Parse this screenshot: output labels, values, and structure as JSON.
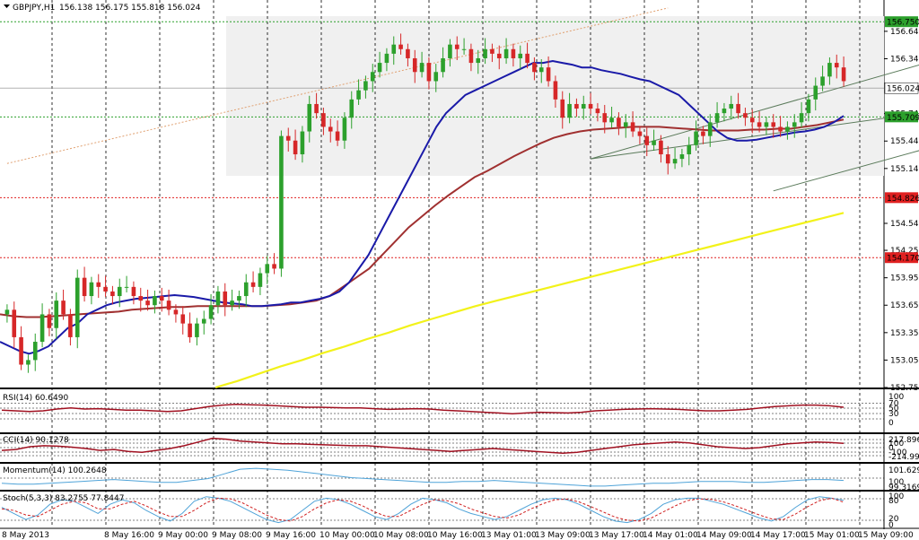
{
  "header": {
    "symbol": "GBPJPY,H1",
    "ohlc": "156.138 156.175 155.818 156.024"
  },
  "colors": {
    "bull": "#2ca02c",
    "bear": "#d62728",
    "ma_fast": "#1a1aa8",
    "ma_slow": "#a03030",
    "ma_200": "#f2f21a",
    "zone": "#f0f0f0",
    "marker_green": "#2ca02c",
    "marker_red": "#e02020",
    "marker_gray": "#808080",
    "osc": "#a01020",
    "mom": "#4fa3d8",
    "stoch_main": "#4fa3d8",
    "stoch_signal": "#d02020"
  },
  "chart_data": [
    {
      "type": "candlestick",
      "title": "GBPJPY,H1 156.138 156.175 155.818 156.024",
      "ylim": [
        152.75,
        156.85
      ],
      "y_ticks": [
        156.645,
        156.345,
        155.745,
        155.445,
        155.145,
        154.545,
        154.25,
        153.95,
        153.65,
        153.35,
        153.05,
        152.75
      ],
      "x_ticks": [
        "8 May 2013",
        "8 May 16:00",
        "9 May 00:00",
        "9 May 08:00",
        "9 May 16:00",
        "10 May 00:00",
        "10 May 08:00",
        "10 May 16:00",
        "13 May 01:00",
        "13 May 09:00",
        "13 May 17:00",
        "14 May 01:00",
        "14 May 09:00",
        "14 May 17:00",
        "15 May 01:00",
        "15 May 09:00"
      ],
      "price_markers": [
        {
          "label": "156.750",
          "value": 156.75,
          "style": "green"
        },
        {
          "label": "156.024",
          "value": 156.024,
          "style": "gray"
        },
        {
          "label": "155.709",
          "value": 155.709,
          "style": "green"
        },
        {
          "label": "154.826",
          "value": 154.826,
          "style": "red"
        },
        {
          "label": "154.170",
          "value": 154.17,
          "style": "red"
        }
      ],
      "resistance_zone": [
        155.1,
        156.75
      ],
      "channel": {
        "upper": [
          [
            83,
            155.25
          ],
          [
            149,
            156.7
          ]
        ],
        "lower": [
          [
            109,
            154.9
          ],
          [
            149,
            155.75
          ]
        ],
        "mid": [
          [
            83,
            155.25
          ],
          [
            130,
            155.75
          ]
        ]
      },
      "trendline": [
        [
          0,
          155.2
        ],
        [
          94,
          156.9
        ]
      ],
      "closes": [
        153.6,
        153.3,
        153.0,
        153.05,
        153.25,
        153.55,
        153.4,
        153.7,
        153.55,
        153.3,
        153.95,
        153.75,
        153.9,
        153.85,
        153.8,
        153.75,
        153.85,
        153.85,
        153.75,
        153.7,
        153.65,
        153.75,
        153.7,
        153.6,
        153.55,
        153.45,
        153.3,
        153.45,
        153.5,
        153.65,
        153.8,
        153.65,
        153.7,
        153.75,
        153.9,
        153.85,
        154.0,
        154.1,
        154.05,
        155.5,
        155.45,
        155.3,
        155.55,
        155.85,
        155.75,
        155.6,
        155.55,
        155.45,
        155.7,
        155.9,
        156.0,
        156.1,
        156.2,
        156.3,
        156.4,
        156.5,
        156.45,
        156.35,
        156.2,
        156.3,
        156.1,
        156.2,
        156.35,
        156.5,
        156.45,
        156.45,
        156.3,
        156.35,
        156.45,
        156.4,
        156.35,
        156.45,
        156.35,
        156.4,
        156.3,
        156.2,
        156.25,
        156.1,
        155.9,
        155.7,
        155.85,
        155.8,
        155.85,
        155.8,
        155.75,
        155.65,
        155.7,
        155.6,
        155.65,
        155.55,
        155.5,
        155.4,
        155.45,
        155.3,
        155.2,
        155.25,
        155.3,
        155.4,
        155.55,
        155.5,
        155.65,
        155.75,
        155.8,
        155.85,
        155.75,
        155.7,
        155.65,
        155.6,
        155.65,
        155.6,
        155.55,
        155.6,
        155.65,
        155.75,
        155.9,
        156.05,
        156.15,
        156.3,
        156.25,
        156.1
      ],
      "ma_fast_values": [
        153.25,
        153.2,
        153.15,
        153.12,
        153.15,
        153.2,
        153.3,
        153.4,
        153.45,
        153.55,
        153.6,
        153.65,
        153.68,
        153.7,
        153.72,
        153.73,
        153.74,
        153.75,
        153.76,
        153.75,
        153.74,
        153.72,
        153.7,
        153.68,
        153.67,
        153.66,
        153.64,
        153.64,
        153.65,
        153.66,
        153.68,
        153.68,
        153.7,
        153.72,
        153.75,
        153.8,
        153.9,
        154.05,
        154.2,
        154.4,
        154.6,
        154.8,
        155.0,
        155.2,
        155.4,
        155.6,
        155.75,
        155.85,
        155.95,
        156.0,
        156.05,
        156.1,
        156.15,
        156.2,
        156.25,
        156.3,
        156.3,
        156.32,
        156.3,
        156.28,
        156.25,
        156.25,
        156.22,
        156.2,
        156.18,
        156.15,
        156.12,
        156.1,
        156.05,
        156.0,
        155.95,
        155.85,
        155.75,
        155.65,
        155.55,
        155.48,
        155.45,
        155.45,
        155.46,
        155.48,
        155.5,
        155.52,
        155.54,
        155.55,
        155.57,
        155.6,
        155.65,
        155.72
      ],
      "ma_slow_values": [
        153.55,
        153.53,
        153.52,
        153.52,
        153.53,
        153.54,
        153.55,
        153.56,
        153.57,
        153.58,
        153.6,
        153.61,
        153.62,
        153.63,
        153.63,
        153.64,
        153.64,
        153.64,
        153.64,
        153.64,
        153.64,
        153.65,
        153.66,
        153.68,
        153.7,
        153.75,
        153.85,
        153.95,
        154.05,
        154.2,
        154.35,
        154.5,
        154.62,
        154.74,
        154.85,
        154.95,
        155.05,
        155.12,
        155.2,
        155.28,
        155.35,
        155.42,
        155.48,
        155.52,
        155.55,
        155.57,
        155.58,
        155.59,
        155.6,
        155.6,
        155.6,
        155.59,
        155.58,
        155.57,
        155.56,
        155.56,
        155.56,
        155.57,
        155.57,
        155.58,
        155.58,
        155.6,
        155.62,
        155.65,
        155.68
      ],
      "ma_200_values": [
        152.75,
        152.82,
        152.9,
        152.98,
        153.05,
        153.13,
        153.2,
        153.28,
        153.35,
        153.43,
        153.5,
        153.57,
        153.64,
        153.7,
        153.76,
        153.82,
        153.88,
        153.94,
        154.0,
        154.06,
        154.12,
        154.18,
        154.24,
        154.3,
        154.36,
        154.42,
        154.48,
        154.54,
        154.6,
        154.66
      ]
    },
    {
      "type": "line",
      "title": "RSI(14) 60.6490",
      "ylim": [
        0,
        100
      ],
      "y_ticks": [
        "100",
        "70",
        "50",
        "30",
        "0"
      ],
      "values": [
        52,
        50,
        48,
        50,
        55,
        58,
        55,
        56,
        54,
        52,
        52,
        50,
        48,
        50,
        56,
        62,
        66,
        68,
        67,
        66,
        64,
        62,
        60,
        60,
        59,
        58,
        58,
        56,
        54,
        55,
        56,
        55,
        52,
        50,
        48,
        46,
        44,
        42,
        44,
        46,
        45,
        44,
        46,
        50,
        52,
        54,
        55,
        56,
        55,
        54,
        52,
        50,
        50,
        52,
        54,
        58,
        62,
        64,
        66,
        66,
        64,
        60
      ]
    },
    {
      "type": "line",
      "title": "CCI(14) 90.1278",
      "y_ticks": [
        "217.8963",
        "100",
        "0",
        "-100",
        "-214.9927"
      ],
      "values": [
        -60,
        -40,
        20,
        40,
        30,
        10,
        -20,
        -60,
        -40,
        -80,
        -100,
        -60,
        -20,
        40,
        120,
        200,
        180,
        140,
        120,
        100,
        80,
        80,
        70,
        60,
        50,
        40,
        40,
        20,
        0,
        -20,
        -40,
        -60,
        -80,
        -60,
        -40,
        -20,
        -40,
        -60,
        -80,
        -100,
        -120,
        -100,
        -60,
        -20,
        20,
        60,
        80,
        100,
        120,
        100,
        60,
        20,
        0,
        -20,
        0,
        40,
        80,
        100,
        120,
        110,
        90
      ]
    },
    {
      "type": "line",
      "title": "Momentum(14) 100.2648",
      "y_ticks": [
        "101.6291",
        "100",
        "99.3169"
      ],
      "values": [
        99.9,
        99.8,
        99.8,
        99.9,
        100.0,
        100.1,
        100.2,
        100.3,
        100.2,
        100.1,
        100.0,
        100.0,
        100.2,
        100.4,
        100.9,
        101.4,
        101.5,
        101.4,
        101.3,
        101.1,
        100.9,
        100.7,
        100.5,
        100.4,
        100.3,
        100.2,
        100.1,
        100.0,
        100.0,
        100.1,
        100.1,
        100.2,
        100.1,
        100.0,
        99.9,
        99.8,
        99.7,
        99.6,
        99.6,
        99.7,
        99.8,
        99.9,
        99.9,
        100.0,
        100.1,
        100.1,
        100.1,
        100.0,
        100.0,
        100.1,
        100.2,
        100.3,
        100.3,
        100.2
      ]
    },
    {
      "type": "line",
      "title": "Stoch(5,3,3) 83.2755 77.8447",
      "ylim": [
        0,
        100
      ],
      "y_ticks": [
        "100",
        "80",
        "20",
        "0"
      ],
      "main": [
        60,
        40,
        20,
        35,
        70,
        85,
        80,
        60,
        40,
        70,
        85,
        75,
        50,
        30,
        15,
        40,
        80,
        95,
        90,
        80,
        60,
        40,
        20,
        10,
        20,
        50,
        80,
        90,
        85,
        70,
        50,
        30,
        20,
        40,
        70,
        90,
        85,
        75,
        55,
        40,
        30,
        20,
        30,
        50,
        70,
        85,
        90,
        85,
        70,
        50,
        30,
        15,
        10,
        20,
        40,
        70,
        85,
        90,
        90,
        80,
        70,
        55,
        40,
        25,
        15,
        30,
        60,
        85,
        95,
        90,
        83
      ],
      "signal": [
        55,
        50,
        35,
        30,
        50,
        70,
        80,
        75,
        55,
        55,
        70,
        80,
        65,
        45,
        30,
        30,
        50,
        75,
        90,
        88,
        75,
        55,
        35,
        20,
        15,
        30,
        55,
        75,
        85,
        80,
        65,
        45,
        30,
        30,
        50,
        70,
        85,
        82,
        72,
        55,
        42,
        30,
        25,
        35,
        55,
        72,
        85,
        87,
        78,
        62,
        45,
        28,
        18,
        15,
        25,
        45,
        65,
        82,
        88,
        86,
        78,
        65,
        50,
        35,
        22,
        20,
        38,
        62,
        82,
        90,
        77
      ]
    }
  ]
}
